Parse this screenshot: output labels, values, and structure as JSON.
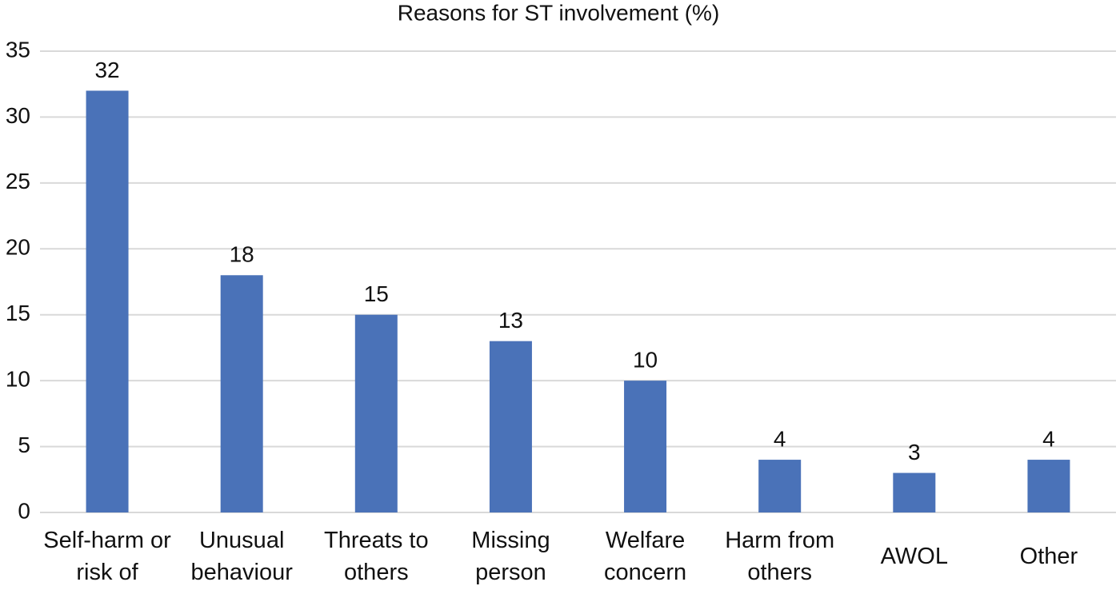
{
  "chart_data": {
    "type": "bar",
    "title": "Reasons for ST involvement (%)",
    "categories": [
      "Self-harm or risk of",
      "Unusual behaviour",
      "Threats to others",
      "Missing person",
      "Welfare concern",
      "Harm from others",
      "AWOL",
      "Other"
    ],
    "values": [
      32,
      18,
      15,
      13,
      10,
      4,
      3,
      4
    ],
    "color": "#4a72b8",
    "ylim": [
      0,
      35
    ],
    "yticks": [
      0,
      5,
      10,
      15,
      20,
      25,
      30,
      35
    ],
    "grid": true
  }
}
